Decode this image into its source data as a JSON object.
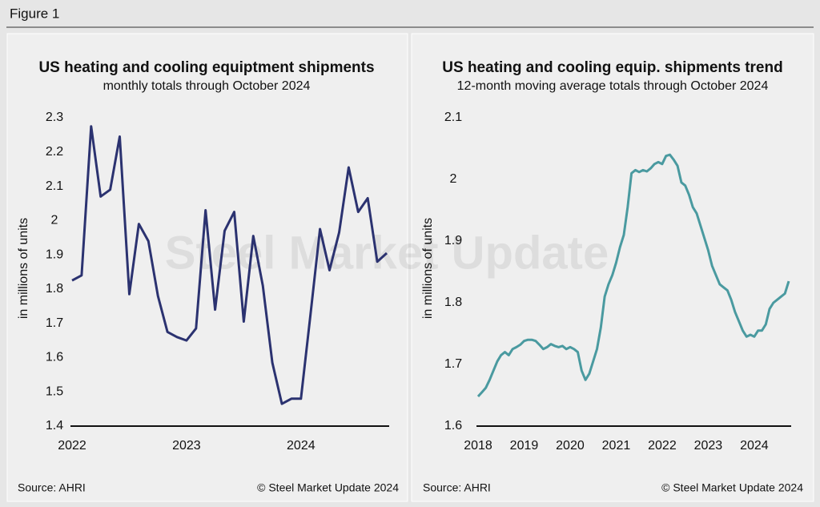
{
  "header": {
    "title": "Figure 1"
  },
  "watermark": "Steel Market Update",
  "chart_data": [
    {
      "type": "line",
      "title": "US heating and cooling equiptment shipments",
      "subtitle": "monthly totals through October 2024",
      "y_label": "in millions of units",
      "source": "Source: AHRI",
      "copyright": "© Steel Market Update 2024",
      "color": "#2b3270",
      "categories": [
        "2022",
        null,
        null,
        null,
        null,
        null,
        null,
        null,
        null,
        null,
        null,
        null,
        "2023",
        null,
        null,
        null,
        null,
        null,
        null,
        null,
        null,
        null,
        null,
        null,
        "2024",
        null,
        null,
        null,
        null,
        null,
        null,
        null,
        null,
        null
      ],
      "values": [
        1.825,
        1.84,
        2.275,
        2.07,
        2.09,
        2.245,
        1.785,
        1.99,
        1.94,
        1.78,
        1.675,
        1.66,
        1.65,
        1.685,
        2.03,
        1.74,
        1.97,
        2.025,
        1.705,
        1.955,
        1.81,
        1.585,
        1.465,
        1.48,
        1.48,
        1.725,
        1.975,
        1.855,
        1.965,
        2.155,
        2.025,
        2.065,
        1.88,
        1.905
      ],
      "ylim": [
        1.4,
        2.3
      ],
      "yticks": [
        1.4,
        1.5,
        1.6,
        1.7,
        1.8,
        1.9,
        2.0,
        2.1,
        2.2,
        2.3
      ]
    },
    {
      "type": "line",
      "title": "US heating and cooling equip. shipments trend",
      "subtitle": "12-month moving average totals through October 2024",
      "y_label": "in millions of units",
      "source": "Source: AHRI",
      "copyright": "© Steel Market Update 2024",
      "color": "#4a9aa0",
      "categories": [
        "2018",
        null,
        null,
        null,
        null,
        null,
        null,
        null,
        null,
        null,
        null,
        null,
        "2019",
        null,
        null,
        null,
        null,
        null,
        null,
        null,
        null,
        null,
        null,
        null,
        "2020",
        null,
        null,
        null,
        null,
        null,
        null,
        null,
        null,
        null,
        null,
        null,
        "2021",
        null,
        null,
        null,
        null,
        null,
        null,
        null,
        null,
        null,
        null,
        null,
        "2022",
        null,
        null,
        null,
        null,
        null,
        null,
        null,
        null,
        null,
        null,
        null,
        "2023",
        null,
        null,
        null,
        null,
        null,
        null,
        null,
        null,
        null,
        null,
        null,
        "2024",
        null,
        null,
        null,
        null,
        null,
        null,
        null,
        null,
        null
      ],
      "values": [
        1.648,
        1.655,
        1.662,
        1.675,
        1.69,
        1.705,
        1.715,
        1.72,
        1.715,
        1.725,
        1.728,
        1.732,
        1.738,
        1.74,
        1.74,
        1.738,
        1.732,
        1.725,
        1.728,
        1.733,
        1.73,
        1.728,
        1.73,
        1.725,
        1.728,
        1.725,
        1.72,
        1.69,
        1.675,
        1.685,
        1.705,
        1.725,
        1.76,
        1.81,
        1.83,
        1.845,
        1.865,
        1.89,
        1.91,
        1.955,
        2.01,
        2.015,
        2.012,
        2.015,
        2.013,
        2.018,
        2.025,
        2.028,
        2.025,
        2.038,
        2.04,
        2.032,
        2.022,
        1.995,
        1.99,
        1.975,
        1.955,
        1.945,
        1.925,
        1.905,
        1.885,
        1.86,
        1.845,
        1.83,
        1.825,
        1.82,
        1.805,
        1.785,
        1.77,
        1.755,
        1.745,
        1.748,
        1.745,
        1.755,
        1.755,
        1.765,
        1.79,
        1.8,
        1.805,
        1.81,
        1.815,
        1.835
      ],
      "ylim": [
        1.6,
        2.1
      ],
      "yticks": [
        1.6,
        1.7,
        1.8,
        1.9,
        2.0,
        2.1
      ]
    }
  ]
}
